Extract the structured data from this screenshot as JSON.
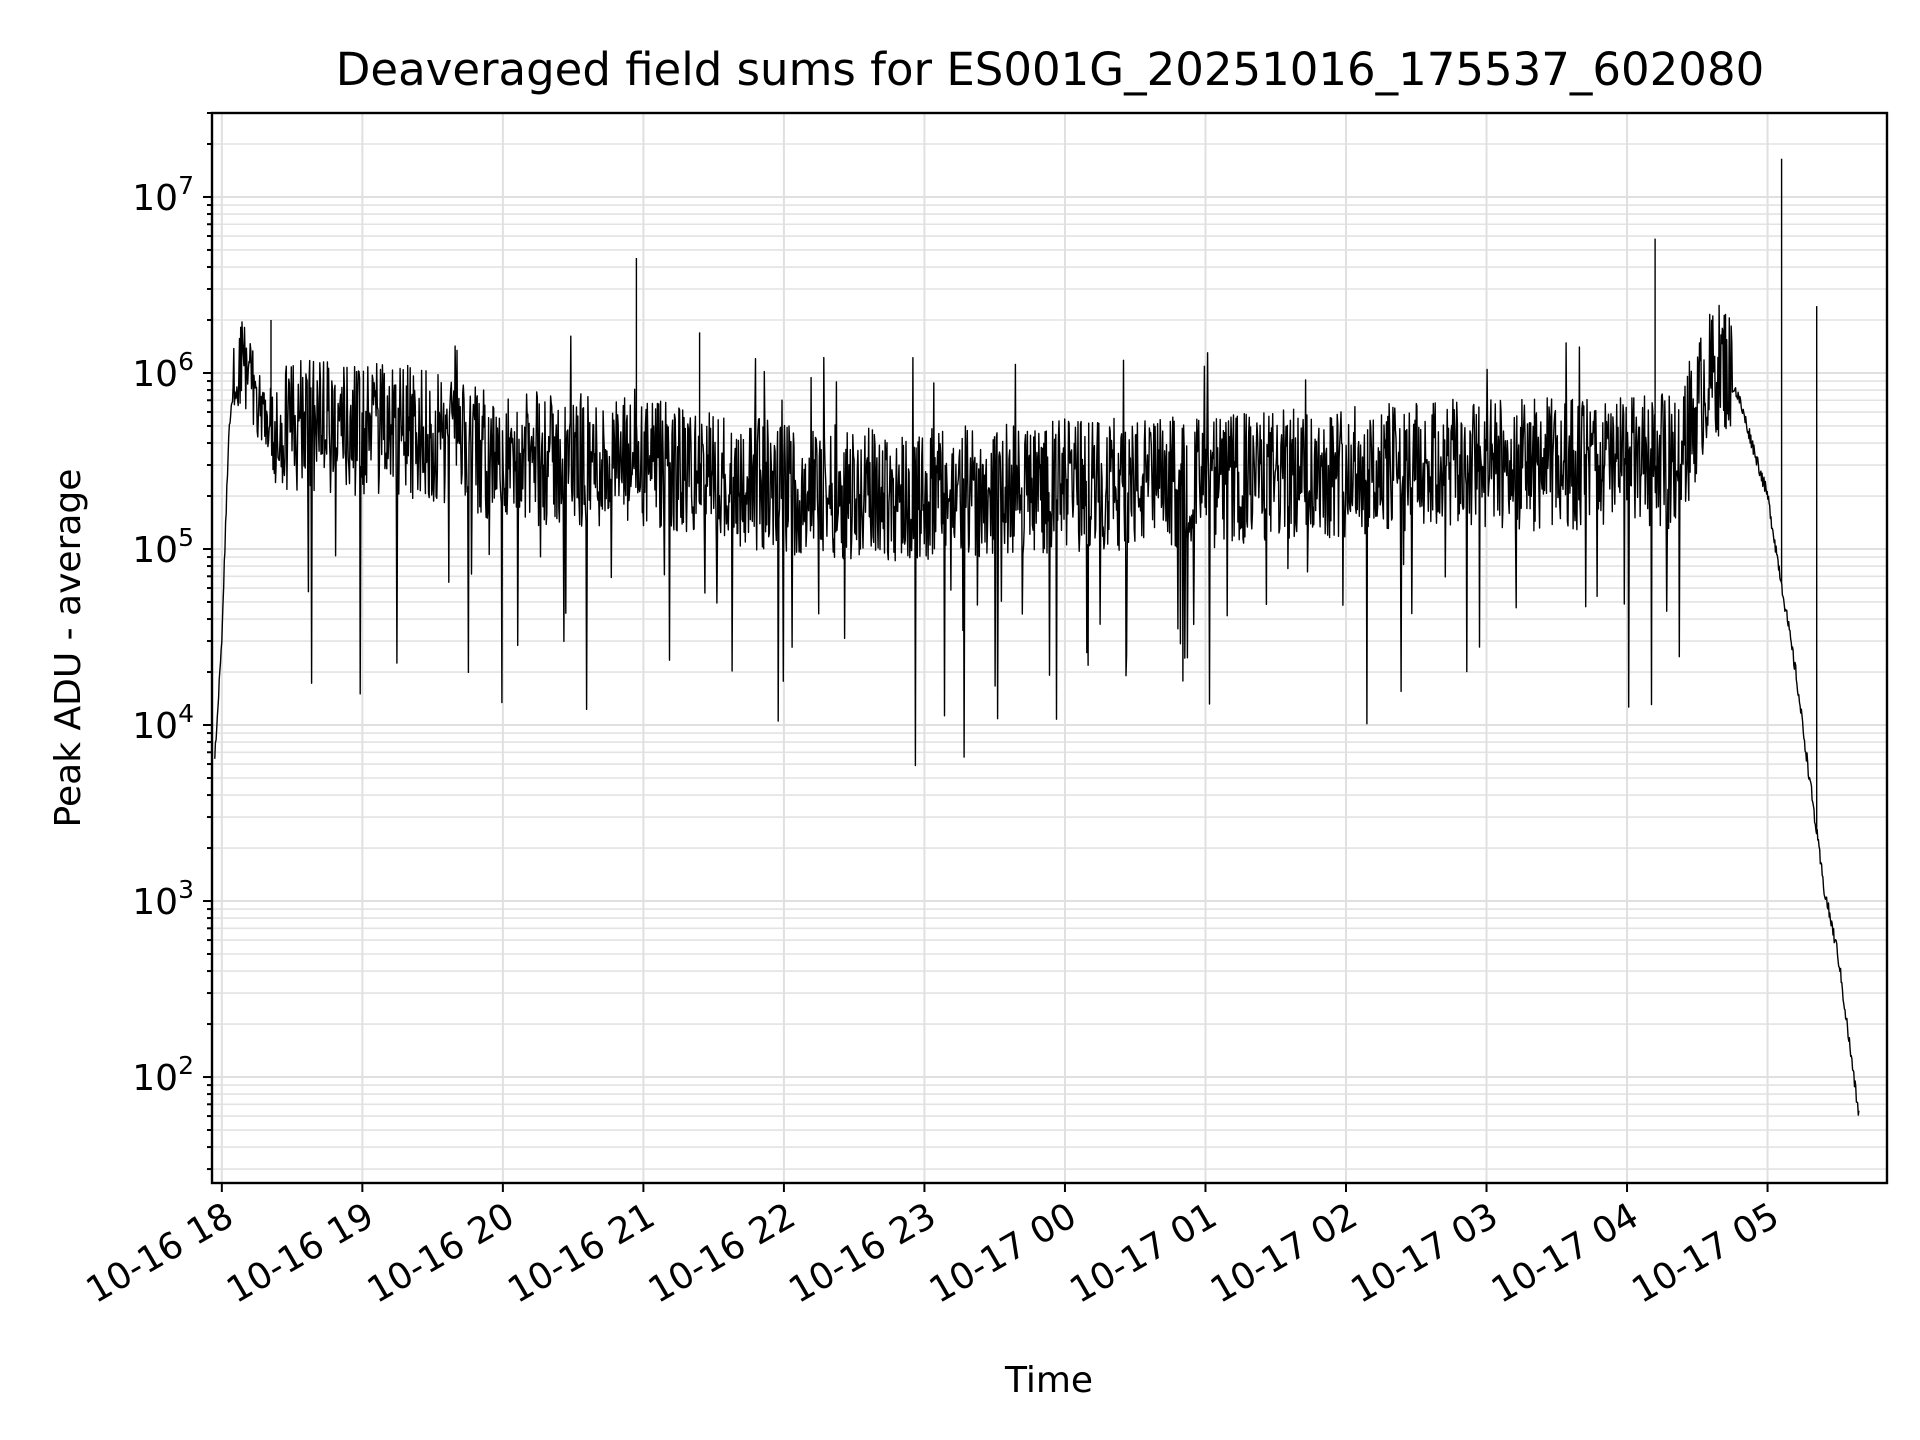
{
  "chart_data": {
    "type": "line",
    "title": "Deaveraged field sums for ES001G_20251016_175537_602080",
    "xlabel": "Time",
    "ylabel": "Peak ADU - average",
    "yscale": "log",
    "ylim": [
      25,
      30000000
    ],
    "xlim_hours": [
      -0.07,
      11.85
    ],
    "x_start": "2025-10-16 18:00",
    "grid": true,
    "line_color": "#000000",
    "x_ticks": [
      {
        "hour": 0,
        "label": "10-16 18"
      },
      {
        "hour": 1,
        "label": "10-16 19"
      },
      {
        "hour": 2,
        "label": "10-16 20"
      },
      {
        "hour": 3,
        "label": "10-16 21"
      },
      {
        "hour": 4,
        "label": "10-16 22"
      },
      {
        "hour": 5,
        "label": "10-16 23"
      },
      {
        "hour": 6,
        "label": "10-17 00"
      },
      {
        "hour": 7,
        "label": "10-17 01"
      },
      {
        "hour": 8,
        "label": "10-17 02"
      },
      {
        "hour": 9,
        "label": "10-17 03"
      },
      {
        "hour": 10,
        "label": "10-17 04"
      },
      {
        "hour": 11,
        "label": "10-17 05"
      }
    ],
    "y_ticks": [
      {
        "value": 100,
        "base": "10",
        "exp": "2"
      },
      {
        "value": 1000,
        "base": "10",
        "exp": "3"
      },
      {
        "value": 10000,
        "base": "10",
        "exp": "4"
      },
      {
        "value": 100000,
        "base": "10",
        "exp": "5"
      },
      {
        "value": 1000000,
        "base": "10",
        "exp": "6"
      },
      {
        "value": 10000000,
        "base": "10",
        "exp": "7"
      }
    ],
    "envelope": [
      {
        "hour": -0.05,
        "value": 6500
      },
      {
        "hour": 0.0,
        "value": 30000
      },
      {
        "hour": 0.05,
        "value": 500000
      },
      {
        "hour": 0.12,
        "value": 1200000
      },
      {
        "hour": 0.2,
        "value": 900000
      },
      {
        "hour": 0.35,
        "value": 500000
      },
      {
        "hour": 1.0,
        "value": 480000
      },
      {
        "hour": 1.5,
        "value": 450000
      },
      {
        "hour": 2.0,
        "value": 320000
      },
      {
        "hour": 3.0,
        "value": 300000
      },
      {
        "hour": 4.0,
        "value": 220000
      },
      {
        "hour": 5.0,
        "value": 200000
      },
      {
        "hour": 6.0,
        "value": 230000
      },
      {
        "hour": 7.0,
        "value": 240000
      },
      {
        "hour": 8.0,
        "value": 280000
      },
      {
        "hour": 9.0,
        "value": 300000
      },
      {
        "hour": 10.0,
        "value": 310000
      },
      {
        "hour": 10.35,
        "value": 320000
      },
      {
        "hour": 10.45,
        "value": 450000
      },
      {
        "hour": 10.55,
        "value": 850000
      },
      {
        "hour": 10.65,
        "value": 1050000
      },
      {
        "hour": 10.7,
        "value": 1100000
      },
      {
        "hour": 10.8,
        "value": 700000
      },
      {
        "hour": 11.0,
        "value": 200000
      },
      {
        "hour": 11.2,
        "value": 20000
      },
      {
        "hour": 11.4,
        "value": 1200
      },
      {
        "hour": 11.5,
        "value": 500
      },
      {
        "hour": 11.65,
        "value": 60
      }
    ],
    "spikes": [
      {
        "hour": 0.35,
        "value": 2000000
      },
      {
        "hour": 2.95,
        "value": 4500000
      },
      {
        "hour": 3.4,
        "value": 1700000
      },
      {
        "hour": 10.2,
        "value": 5800000
      },
      {
        "hour": 11.1,
        "value": 16500000
      },
      {
        "hour": 11.35,
        "value": 2400000
      }
    ]
  }
}
